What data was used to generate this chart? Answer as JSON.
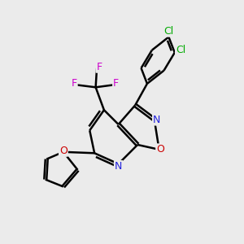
{
  "bg_color": "#ebebeb",
  "bond_color": "#000000",
  "bond_width": 1.8,
  "figsize": [
    3.0,
    3.0
  ],
  "dpi": 100,
  "xlim": [
    0,
    10
  ],
  "ylim": [
    0,
    10
  ],
  "colors": {
    "N": "#2222dd",
    "O": "#cc0000",
    "F": "#cc00cc",
    "Cl": "#00aa00",
    "C": "#000000"
  },
  "fontsizes": {
    "N": 9,
    "O": 9,
    "F": 9,
    "Cl": 9
  }
}
